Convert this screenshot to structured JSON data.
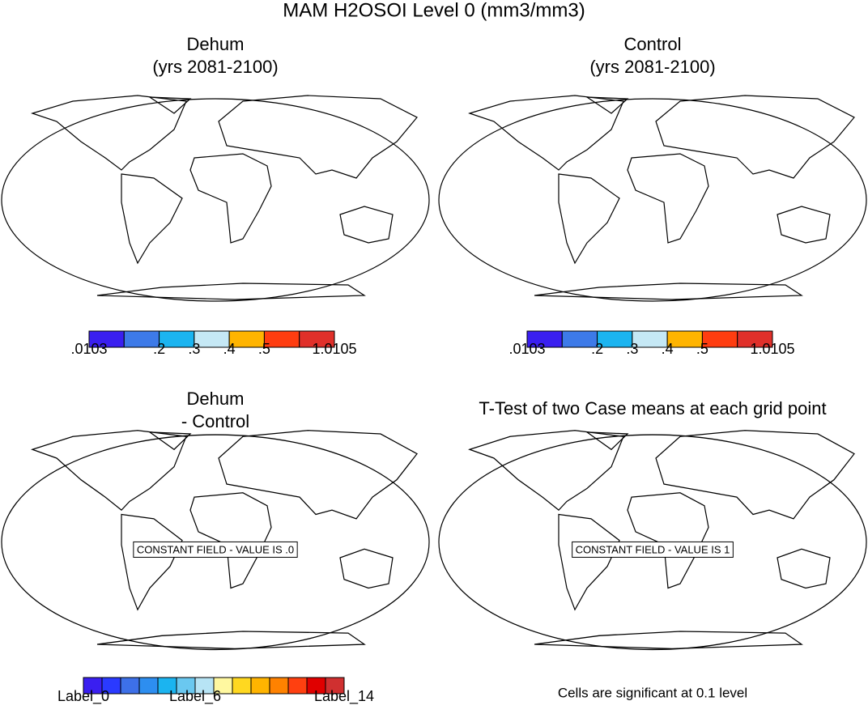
{
  "title": "MAM H2OSOI Level 0 (mm3/mm3)",
  "panels": [
    {
      "title": [
        "Dehum",
        "(yrs 2081-2100)"
      ],
      "colorbar": {
        "colors": [
          "#3a1ff0",
          "#3d7ae8",
          "#1bb4f0",
          "#c5e8f5",
          "#ffb400",
          "#ff3d10",
          "#e0302a"
        ],
        "labels": [
          ".0103",
          null,
          ".2",
          ".3",
          ".4",
          ".5",
          null,
          "1.0105"
        ]
      }
    },
    {
      "title": [
        "Control",
        "(yrs 2081-2100)"
      ],
      "colorbar": {
        "colors": [
          "#3a1ff0",
          "#3d7ae8",
          "#1bb4f0",
          "#c5e8f5",
          "#ffb400",
          "#ff3d10",
          "#e0302a"
        ],
        "labels": [
          ".0103",
          null,
          ".2",
          ".3",
          ".4",
          ".5",
          null,
          "1.0105"
        ]
      }
    },
    {
      "title": [
        "Dehum",
        "- Control"
      ],
      "annotation": "CONSTANT FIELD - VALUE IS .0",
      "colorbar": {
        "colors": [
          "#3a1ff0",
          "#2a3aff",
          "#3d70e8",
          "#2d8ef0",
          "#1bb4f0",
          "#6ac8f0",
          "#b7e4f5",
          "#fff8a0",
          "#ffd820",
          "#ffb400",
          "#ff8200",
          "#ff4010",
          "#e00000",
          "#d03030"
        ],
        "labels": [
          "Label_0",
          null,
          null,
          null,
          null,
          null,
          "Label_6",
          null,
          null,
          null,
          null,
          null,
          null,
          null,
          "Label_14"
        ]
      }
    },
    {
      "title": [
        "T-Test of two Case means at each grid point"
      ],
      "annotation": "CONSTANT FIELD - VALUE IS 1",
      "footer": "Cells are significant at 0.1 level"
    }
  ]
}
